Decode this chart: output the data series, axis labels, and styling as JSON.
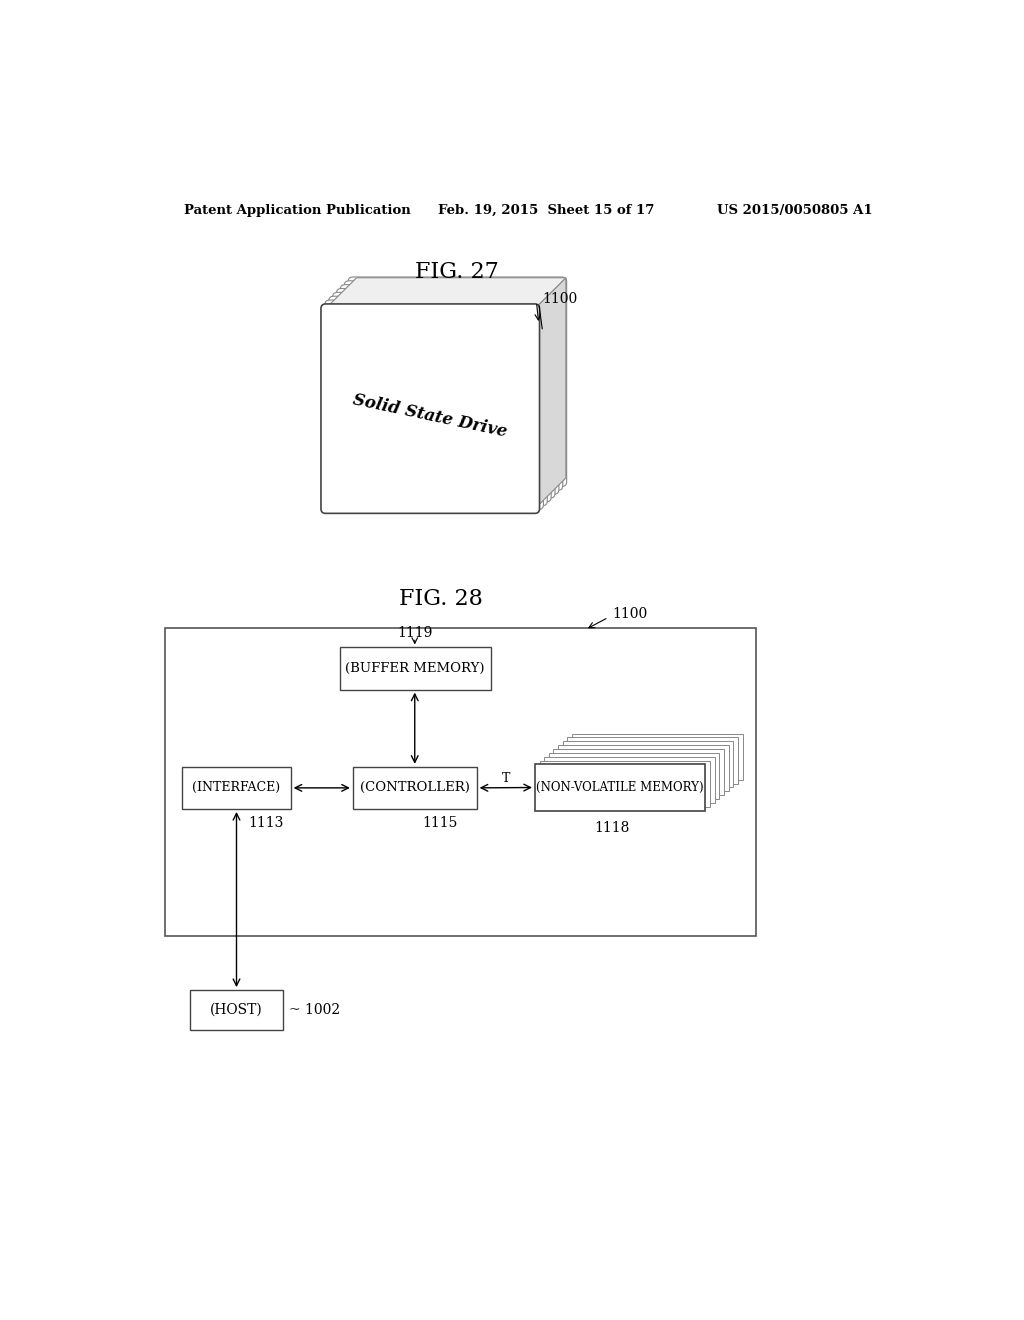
{
  "background_color": "#ffffff",
  "header_left": "Patent Application Publication",
  "header_center": "Feb. 19, 2015  Sheet 15 of 17",
  "header_right": "US 2015/0050805 A1",
  "fig27_label": "FIG. 27",
  "fig28_label": "FIG. 28",
  "ssd_label": "Solid State Drive",
  "label_1100_fig27": "1100",
  "label_1100_fig28": "1100",
  "label_1119": "1119",
  "label_1113": "1113",
  "label_1115": "1115",
  "label_1118": "1118",
  "label_1002": "1002",
  "label_T": "T",
  "box_buffer_memory": "(BUFFER MEMORY)",
  "box_interface": "(INTERFACE)",
  "box_controller": "(CONTROLLER)",
  "box_nvm": "(NON-VOLATILE MEMORY)",
  "box_host": "(HOST)"
}
